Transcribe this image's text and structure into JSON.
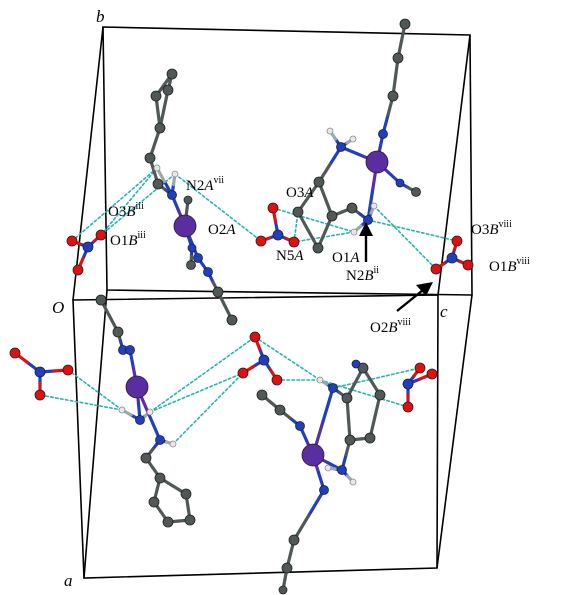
{
  "axes": {
    "a": "a",
    "b": "b",
    "c": "c",
    "origin": "O"
  },
  "labels": [
    {
      "id": "n2a-vii",
      "parts": [
        [
          "N2",
          false,
          false
        ],
        [
          "A",
          true,
          false
        ],
        [
          "vii",
          false,
          true
        ]
      ]
    },
    {
      "id": "o3b-iii",
      "parts": [
        [
          "O3",
          false,
          false
        ],
        [
          "B",
          true,
          false
        ],
        [
          "iii",
          false,
          true
        ]
      ]
    },
    {
      "id": "o1b-iii",
      "parts": [
        [
          "O1",
          false,
          false
        ],
        [
          "B",
          true,
          false
        ],
        [
          "iii",
          false,
          true
        ]
      ]
    },
    {
      "id": "o3a",
      "parts": [
        [
          "O3",
          false,
          false
        ],
        [
          "A",
          true,
          false
        ]
      ]
    },
    {
      "id": "o2a",
      "parts": [
        [
          "O2",
          false,
          false
        ],
        [
          "A",
          true,
          false
        ]
      ]
    },
    {
      "id": "n5a",
      "parts": [
        [
          "N5",
          false,
          false
        ],
        [
          "A",
          true,
          false
        ]
      ]
    },
    {
      "id": "o1a",
      "parts": [
        [
          "O1",
          false,
          false
        ],
        [
          "A",
          true,
          false
        ]
      ]
    },
    {
      "id": "n2b-ii",
      "parts": [
        [
          "N2",
          false,
          false
        ],
        [
          "B",
          true,
          false
        ],
        [
          "ii",
          false,
          true
        ]
      ]
    },
    {
      "id": "o3b-viii",
      "parts": [
        [
          "O3",
          false,
          false
        ],
        [
          "B",
          true,
          false
        ],
        [
          "viii",
          false,
          true
        ]
      ]
    },
    {
      "id": "o1b-viii",
      "parts": [
        [
          "O1",
          false,
          false
        ],
        [
          "B",
          true,
          false
        ],
        [
          "viii",
          false,
          true
        ]
      ]
    },
    {
      "id": "o2b-viii",
      "parts": [
        [
          "O2",
          false,
          false
        ],
        [
          "B",
          true,
          false
        ],
        [
          "viii",
          false,
          true
        ]
      ]
    }
  ],
  "colors": {
    "metal": "#5a2ea0",
    "nitrogen": "#1f3fbf",
    "oxygen": "#e01010",
    "carbon": "#505858",
    "hydrogen": "#e8e8e8",
    "hbond": "#28b4b4",
    "cell": "#000000"
  }
}
